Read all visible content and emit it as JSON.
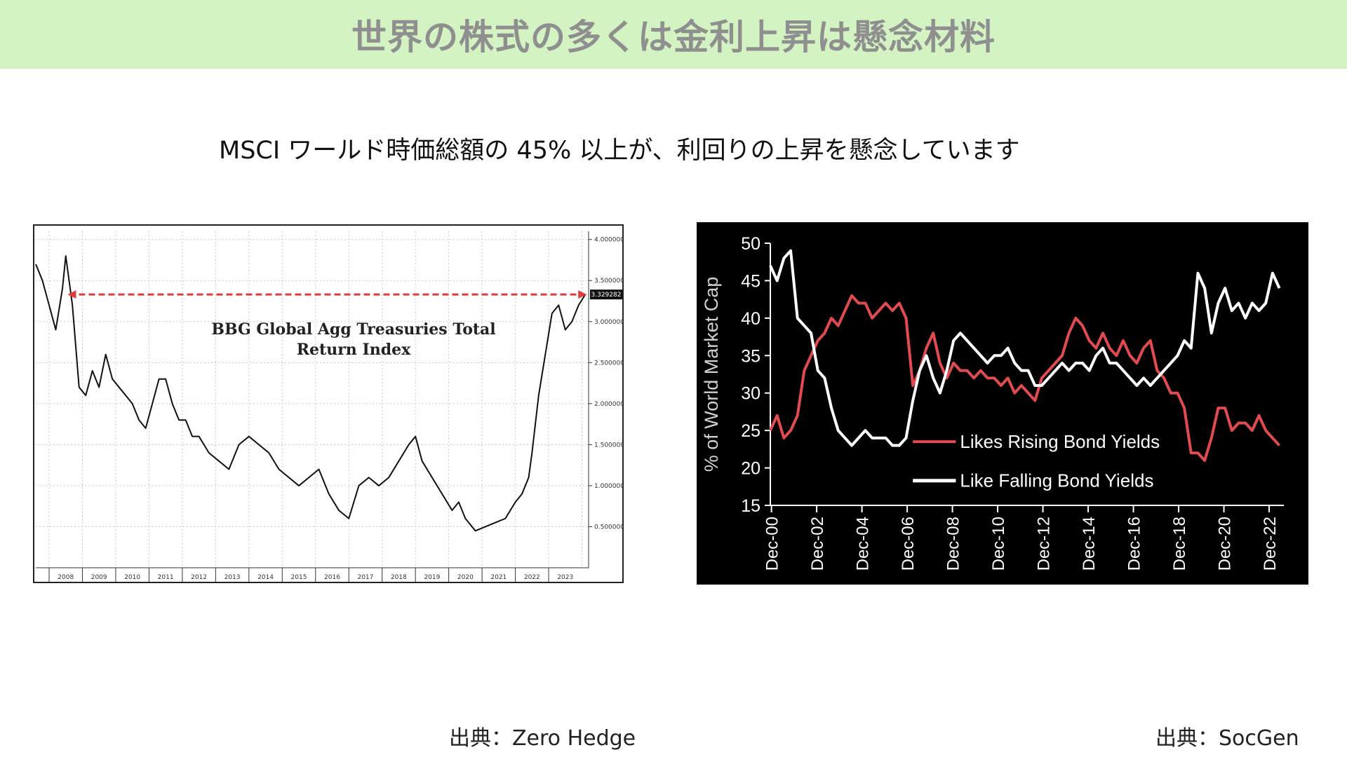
{
  "slide": {
    "title": "世界の株式の多くは金利上昇は懸念材料",
    "subtitle": "MSCI ワールド時価総額の 45% 以上が、利回りの上昇を懸念しています",
    "source_left": "出典：Zero Hedge",
    "source_right": "出典：SocGen",
    "header_bg_color": "#d4f3c3",
    "title_color": "#8f8f8f"
  },
  "chart_data": [
    {
      "type": "line",
      "title": "BBG Global Agg Treasuries Total Return Index",
      "title_line1": "BBG Global Agg Treasuries Total",
      "title_line2": "Return Index",
      "xlabel": "",
      "ylabel": "",
      "x_ticks": [
        "2008",
        "2009",
        "2010",
        "2011",
        "2012",
        "2013",
        "2014",
        "2015",
        "2016",
        "2017",
        "2018",
        "2019",
        "2020",
        "2021",
        "2022",
        "2023"
      ],
      "y_ticks": [
        "4.000000",
        "3.500000",
        "3.000000",
        "2.500000",
        "2.000000",
        "1.500000",
        "1.000000",
        "0.500000"
      ],
      "ylim": [
        0.0,
        4.1
      ],
      "xlim": [
        2007.1,
        2023.7
      ],
      "last_value_label": "3.329282",
      "reference_line_value": 3.33,
      "reference_line_color": "#e03b3b",
      "grid": true,
      "series": [
        {
          "color": "#111111",
          "x": [
            2007.1,
            2007.3,
            2007.5,
            2007.7,
            2007.9,
            2008.0,
            2008.2,
            2008.4,
            2008.6,
            2008.8,
            2009.0,
            2009.2,
            2009.4,
            2009.6,
            2009.8,
            2010.0,
            2010.2,
            2010.4,
            2010.6,
            2010.8,
            2011.0,
            2011.2,
            2011.4,
            2011.6,
            2011.8,
            2012.0,
            2012.3,
            2012.6,
            2012.9,
            2013.2,
            2013.5,
            2013.8,
            2014.1,
            2014.4,
            2014.7,
            2015.0,
            2015.3,
            2015.6,
            2015.9,
            2016.2,
            2016.5,
            2016.8,
            2017.1,
            2017.4,
            2017.7,
            2018.0,
            2018.3,
            2018.5,
            2018.7,
            2019.0,
            2019.3,
            2019.6,
            2019.8,
            2020.0,
            2020.3,
            2020.6,
            2020.9,
            2021.2,
            2021.5,
            2021.7,
            2021.9,
            2022.0,
            2022.2,
            2022.4,
            2022.6,
            2022.8,
            2023.0,
            2023.2,
            2023.4,
            2023.6
          ],
          "values": [
            3.7,
            3.5,
            3.2,
            2.9,
            3.4,
            3.8,
            3.2,
            2.2,
            2.1,
            2.4,
            2.2,
            2.6,
            2.3,
            2.2,
            2.1,
            2.0,
            1.8,
            1.7,
            2.0,
            2.3,
            2.3,
            2.0,
            1.8,
            1.8,
            1.6,
            1.6,
            1.4,
            1.3,
            1.2,
            1.5,
            1.6,
            1.5,
            1.4,
            1.2,
            1.1,
            1.0,
            1.1,
            1.2,
            0.9,
            0.7,
            0.6,
            1.0,
            1.1,
            1.0,
            1.1,
            1.3,
            1.5,
            1.6,
            1.3,
            1.1,
            0.9,
            0.7,
            0.8,
            0.6,
            0.45,
            0.5,
            0.55,
            0.6,
            0.8,
            0.9,
            1.1,
            1.4,
            2.1,
            2.6,
            3.1,
            3.2,
            2.9,
            3.0,
            3.2,
            3.33
          ]
        }
      ]
    },
    {
      "type": "line",
      "title": "",
      "xlabel": "",
      "ylabel": "% of World Market Cap",
      "ylim": [
        15,
        50
      ],
      "y_ticks": [
        15,
        20,
        25,
        30,
        35,
        40,
        45,
        50
      ],
      "x_ticks": [
        "Dec-00",
        "Dec-02",
        "Dec-04",
        "Dec-06",
        "Dec-08",
        "Dec-10",
        "Dec-12",
        "Dec-14",
        "Dec-16",
        "Dec-18",
        "Dec-20",
        "Dec-22"
      ],
      "xlim": [
        2000.9,
        2023.6
      ],
      "grid": false,
      "legend_position": "center-left",
      "series": [
        {
          "name": "Likes Rising Bond Yields",
          "color": "#e14b50",
          "x": [
            2000.9,
            2001.2,
            2001.5,
            2001.8,
            2002.1,
            2002.4,
            2002.7,
            2003.0,
            2003.3,
            2003.6,
            2003.9,
            2004.2,
            2004.5,
            2004.8,
            2005.1,
            2005.4,
            2005.7,
            2006.0,
            2006.3,
            2006.6,
            2006.9,
            2007.2,
            2007.5,
            2007.8,
            2008.1,
            2008.4,
            2008.7,
            2009.0,
            2009.3,
            2009.6,
            2009.9,
            2010.2,
            2010.5,
            2010.8,
            2011.1,
            2011.4,
            2011.7,
            2012.0,
            2012.3,
            2012.6,
            2012.9,
            2013.2,
            2013.5,
            2013.8,
            2014.1,
            2014.4,
            2014.7,
            2015.0,
            2015.3,
            2015.6,
            2015.9,
            2016.2,
            2016.5,
            2016.8,
            2017.1,
            2017.4,
            2017.7,
            2018.0,
            2018.3,
            2018.6,
            2018.9,
            2019.2,
            2019.5,
            2019.8,
            2020.1,
            2020.4,
            2020.7,
            2021.0,
            2021.3,
            2021.6,
            2021.9,
            2022.2,
            2022.5,
            2022.8,
            2023.1,
            2023.4
          ],
          "values": [
            25,
            27,
            24,
            25,
            27,
            33,
            35,
            37,
            38,
            40,
            39,
            41,
            43,
            42,
            42,
            40,
            41,
            42,
            41,
            42,
            40,
            31,
            33,
            36,
            38,
            34,
            32,
            34,
            33,
            33,
            32,
            33,
            32,
            32,
            31,
            32,
            30,
            31,
            30,
            29,
            32,
            33,
            34,
            35,
            38,
            40,
            39,
            37,
            36,
            38,
            36,
            35,
            37,
            35,
            34,
            36,
            37,
            33,
            32,
            30,
            30,
            28,
            22,
            22,
            21,
            24,
            28,
            28,
            25,
            26,
            26,
            25,
            27,
            25,
            24,
            23
          ]
        },
        {
          "name": "Like Falling Bond Yields",
          "color": "#ffffff",
          "x": [
            2000.9,
            2001.2,
            2001.5,
            2001.8,
            2002.1,
            2002.4,
            2002.7,
            2003.0,
            2003.3,
            2003.6,
            2003.9,
            2004.2,
            2004.5,
            2004.8,
            2005.1,
            2005.4,
            2005.7,
            2006.0,
            2006.3,
            2006.6,
            2006.9,
            2007.2,
            2007.5,
            2007.8,
            2008.1,
            2008.4,
            2008.7,
            2009.0,
            2009.3,
            2009.6,
            2009.9,
            2010.2,
            2010.5,
            2010.8,
            2011.1,
            2011.4,
            2011.7,
            2012.0,
            2012.3,
            2012.6,
            2012.9,
            2013.2,
            2013.5,
            2013.8,
            2014.1,
            2014.4,
            2014.7,
            2015.0,
            2015.3,
            2015.6,
            2015.9,
            2016.2,
            2016.5,
            2016.8,
            2017.1,
            2017.4,
            2017.7,
            2018.0,
            2018.3,
            2018.6,
            2018.9,
            2019.2,
            2019.5,
            2019.8,
            2020.1,
            2020.4,
            2020.7,
            2021.0,
            2021.3,
            2021.6,
            2021.9,
            2022.2,
            2022.5,
            2022.8,
            2023.1,
            2023.4
          ],
          "values": [
            47,
            45,
            48,
            49,
            40,
            39,
            38,
            33,
            32,
            28,
            25,
            24,
            23,
            24,
            25,
            24,
            24,
            24,
            23,
            23,
            24,
            29,
            33,
            35,
            32,
            30,
            33,
            37,
            38,
            37,
            36,
            35,
            34,
            35,
            35,
            36,
            34,
            33,
            33,
            31,
            31,
            32,
            33,
            34,
            33,
            34,
            34,
            33,
            35,
            36,
            34,
            34,
            33,
            32,
            31,
            32,
            31,
            32,
            33,
            34,
            35,
            37,
            36,
            46,
            44,
            38,
            42,
            44,
            41,
            42,
            40,
            42,
            41,
            42,
            46,
            44
          ]
        }
      ]
    }
  ]
}
